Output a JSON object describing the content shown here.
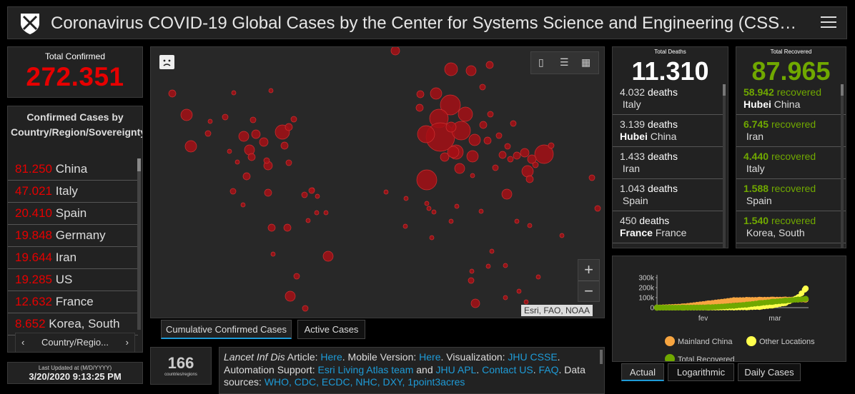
{
  "header": {
    "title": "Coronavirus COVID-19 Global Cases by the Center for Systems Science and Engineering (CSS…"
  },
  "total_confirmed": {
    "label": "Total Confirmed",
    "value": "272.351"
  },
  "country_panel": {
    "header": "Confirmed Cases by Country/Region/Sovereignty",
    "rows": [
      {
        "num": "81.250",
        "name": "China"
      },
      {
        "num": "47.021",
        "name": "Italy"
      },
      {
        "num": "20.410",
        "name": "Spain"
      },
      {
        "num": "19.848",
        "name": "Germany"
      },
      {
        "num": "19.644",
        "name": "Iran"
      },
      {
        "num": "19.285",
        "name": "US"
      },
      {
        "num": "12.632",
        "name": "France"
      },
      {
        "num": "8.652",
        "name": "Korea, South"
      }
    ],
    "tab_label": "Country/Regio...",
    "prev_arrow": "‹",
    "next_arrow": "›"
  },
  "last_updated": {
    "label": "Last Updated at (M/D/YYYY)",
    "value": "3/20/2020 9:13:25 PM"
  },
  "map": {
    "attribution": "Esri, FAO, NOAA",
    "zoom_in": "+",
    "zoom_out": "−",
    "tabs": [
      "Cumulative Confirmed Cases",
      "Active Cases"
    ]
  },
  "countries_count": {
    "value": "166",
    "label": "countries/regions"
  },
  "info": {
    "t1": "Lancet Inf Dis",
    "t2": " Article: ",
    "l1": "Here",
    "t3": ". Mobile Version: ",
    "l2": "Here",
    "t4": ". Visualization: ",
    "l3": "JHU CSSE",
    "t5": ". Automation Support: ",
    "l4": "Esri Living Atlas team",
    "t6": " and ",
    "l5": "JHU APL",
    "t7": ". ",
    "l6": "Contact US",
    "t8": ". ",
    "l7": "FAQ",
    "t9": ". Data sources: ",
    "l8": "WHO, CDC, ECDC, NHC, DXY, 1point3acres"
  },
  "deaths": {
    "label": "Total Deaths",
    "value": "11.310",
    "rows": [
      {
        "num": "4.032",
        "word": "deaths",
        "bold": "",
        "name": "Italy"
      },
      {
        "num": "3.139",
        "word": "deaths",
        "bold": "Hubei",
        "name": "China"
      },
      {
        "num": "1.433",
        "word": "deaths",
        "bold": "",
        "name": "Iran"
      },
      {
        "num": "1.043",
        "word": "deaths",
        "bold": "",
        "name": "Spain"
      },
      {
        "num": "450",
        "word": "deaths",
        "bold": "France",
        "name": "France"
      }
    ]
  },
  "recovered": {
    "label": "Total Recovered",
    "value": "87.965",
    "rows": [
      {
        "num": "58.942",
        "word": "recovered",
        "bold": "Hubei",
        "name": "China"
      },
      {
        "num": "6.745",
        "word": "recovered",
        "bold": "",
        "name": "Iran"
      },
      {
        "num": "4.440",
        "word": "recovered",
        "bold": "",
        "name": "Italy"
      },
      {
        "num": "1.588",
        "word": "recovered",
        "bold": "",
        "name": "Spain"
      },
      {
        "num": "1.540",
        "word": "recovered",
        "bold": "",
        "name": "Korea, South"
      }
    ]
  },
  "chart_data": {
    "type": "line",
    "title": "",
    "xlabel": "",
    "ylabel": "",
    "y_ticks": [
      "300k",
      "200k",
      "100k",
      "0"
    ],
    "x_ticks": [
      "fev",
      "mar"
    ],
    "ylim": [
      0,
      300000
    ],
    "x_days": [
      0,
      10,
      20,
      30,
      35,
      40,
      45,
      50,
      55,
      58
    ],
    "series": [
      {
        "name": "Mainland China",
        "color": "#f7a540",
        "values": [
          550,
          11900,
          42600,
          74300,
          77000,
          78600,
          80100,
          80700,
          80900,
          81250
        ]
      },
      {
        "name": "Other Locations",
        "color": "#ffff4d",
        "values": [
          0,
          150,
          500,
          1500,
          2900,
          7200,
          21100,
          45700,
          101000,
          191000
        ]
      },
      {
        "name": "Total Recovered",
        "color": "#70a800",
        "values": [
          30,
          300,
          3000,
          18000,
          30000,
          45000,
          58000,
          70000,
          81000,
          87965
        ]
      }
    ],
    "legend": [
      "Mainland China",
      "Other Locations",
      "Total Recovered"
    ],
    "tabs": [
      "Actual",
      "Logarithmic",
      "Daily Cases"
    ]
  },
  "colors": {
    "confirmed": "#e60000",
    "recovered": "#70a800",
    "link": "#1e9bd7",
    "bubble": "#a50f15"
  }
}
